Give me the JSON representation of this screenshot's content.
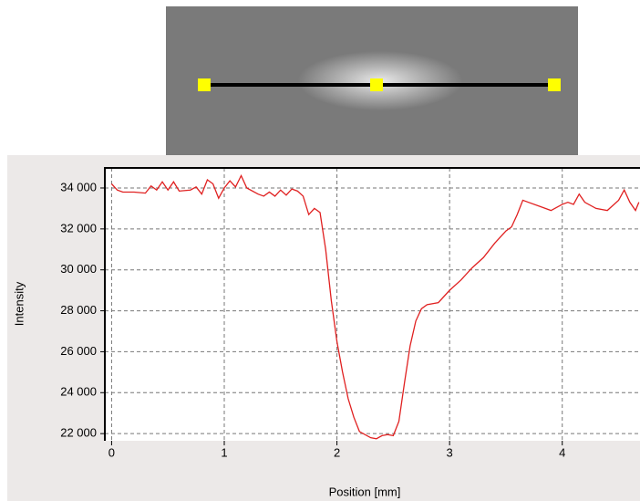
{
  "chart_data": {
    "type": "line",
    "xlabel": "Position [mm]",
    "ylabel": "Intensity",
    "x": [
      0,
      0.05,
      0.1,
      0.2,
      0.3,
      0.35,
      0.4,
      0.45,
      0.5,
      0.55,
      0.6,
      0.7,
      0.75,
      0.8,
      0.85,
      0.9,
      0.95,
      1.0,
      1.05,
      1.1,
      1.15,
      1.2,
      1.3,
      1.35,
      1.4,
      1.45,
      1.5,
      1.55,
      1.6,
      1.65,
      1.7,
      1.75,
      1.8,
      1.85,
      1.9,
      1.95,
      2.0,
      2.05,
      2.1,
      2.15,
      2.2,
      2.3,
      2.35,
      2.4,
      2.45,
      2.5,
      2.55,
      2.6,
      2.65,
      2.7,
      2.75,
      2.8,
      2.9,
      3.0,
      3.1,
      3.2,
      3.3,
      3.4,
      3.5,
      3.55,
      3.6,
      3.65,
      3.7,
      3.8,
      3.9,
      4.0,
      4.05,
      4.1,
      4.15,
      4.2,
      4.3,
      4.4,
      4.5,
      4.55,
      4.6,
      4.65,
      4.68
    ],
    "values": [
      34200,
      33900,
      33800,
      33800,
      33750,
      34100,
      33900,
      34300,
      33900,
      34300,
      33850,
      33900,
      34050,
      33700,
      34400,
      34200,
      33500,
      34000,
      34350,
      34050,
      34600,
      34000,
      33700,
      33600,
      33800,
      33600,
      33900,
      33650,
      33950,
      33850,
      33600,
      32700,
      33000,
      32800,
      31000,
      28500,
      26500,
      25000,
      23700,
      22800,
      22100,
      21800,
      21750,
      21900,
      21950,
      21900,
      22600,
      24500,
      26300,
      27500,
      28100,
      28300,
      28400,
      29000,
      29500,
      30100,
      30600,
      31300,
      31900,
      32100,
      32700,
      33400,
      33300,
      33100,
      32900,
      33200,
      33300,
      33200,
      33700,
      33300,
      33000,
      32900,
      33400,
      33900,
      33300,
      32900,
      33300
    ],
    "color": "#e02020",
    "xlim": [
      -0.06,
      4.69
    ],
    "ylim": [
      21650,
      34980
    ],
    "xticks": [
      0,
      1,
      2,
      3,
      4
    ],
    "yticks": [
      {
        "value": 22000,
        "label": "22 000"
      },
      {
        "value": 24000,
        "label": "24 000"
      },
      {
        "value": 26000,
        "label": "26 000"
      },
      {
        "value": 28000,
        "label": "28 000"
      },
      {
        "value": 30000,
        "label": "30 000"
      },
      {
        "value": 32000,
        "label": "32 000"
      },
      {
        "value": 34000,
        "label": "34 000"
      }
    ],
    "grid": true
  }
}
